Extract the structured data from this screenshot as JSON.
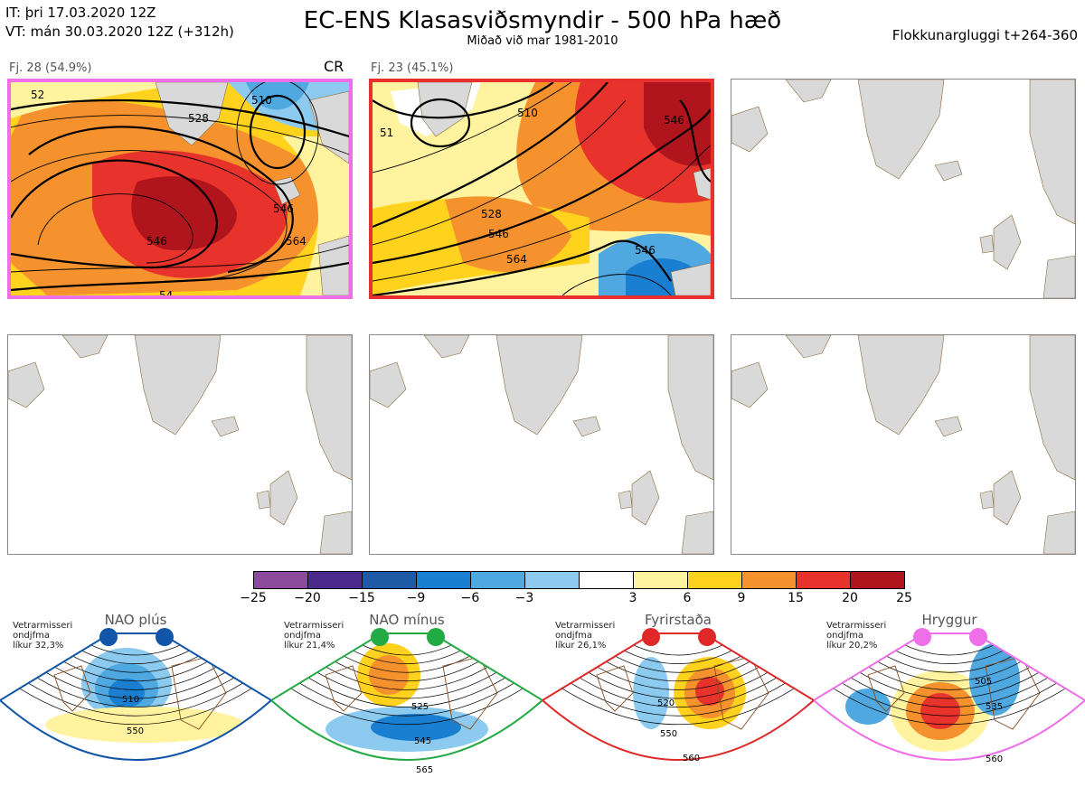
{
  "header": {
    "it_line": "IT: þri 17.03.2020 12Z",
    "vt_line": "VT: mán 30.03.2020 12Z  (+312h)",
    "title": "EC-ENS Klasasviðsmyndir - 500 hPa hæð",
    "subtitle": "Miðað við mar 1981-2010",
    "window_label": "Flokkunargluggi t+264-360"
  },
  "panels": [
    {
      "title": "Fj. 28 (54.9%)",
      "tag": "CR",
      "border_color": "#ee6fe8"
    },
    {
      "title": "Fj. 23 (45.1%)",
      "tag": "",
      "border_color": "#e83030"
    }
  ],
  "contour_labels_panel1": [
    "52",
    "510",
    "528",
    "546",
    "564",
    "546",
    "54"
  ],
  "contour_labels_panel2": [
    "510",
    "528",
    "546",
    "564",
    "546",
    "51",
    "546"
  ],
  "colorbar": {
    "ticks": [
      "−25",
      "−20",
      "−15",
      "−9",
      "−6",
      "−3",
      "3",
      "6",
      "9",
      "15",
      "20",
      "25"
    ],
    "colors": [
      "#8b4a9c",
      "#4a2a8a",
      "#1f5aa6",
      "#1a7fd0",
      "#4fa8e0",
      "#8ccaf0",
      "#ffffff",
      "#fff3a0",
      "#ffd21e",
      "#f5922d",
      "#e8322c",
      "#b0141c"
    ]
  },
  "regimes": [
    {
      "name": "NAO plús",
      "note": [
        "Vetrarmisseri",
        "ondjfma",
        "líkur 32,3%"
      ],
      "color": "#1155a8",
      "labels": [
        "510",
        "550"
      ]
    },
    {
      "name": "NAO mínus",
      "note": [
        "Vetrarmisseri",
        "ondjfma",
        "líkur 21,4%"
      ],
      "color": "#22aa44",
      "labels": [
        "525",
        "545",
        "565"
      ]
    },
    {
      "name": "Fyrirstaða",
      "note": [
        "Vetrarmisseri",
        "ondjfma",
        "líkur 26,1%"
      ],
      "color": "#e02828",
      "labels": [
        "520",
        "550",
        "560"
      ]
    },
    {
      "name": "Hryggur",
      "note": [
        "Vetrarmisseri",
        "ondjfma",
        "líkur 20,2%"
      ],
      "color": "#ee6fe8",
      "labels": [
        "505",
        "535",
        "560"
      ]
    }
  ]
}
